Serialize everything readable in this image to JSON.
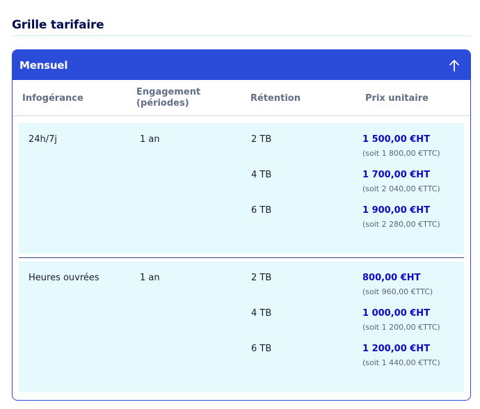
{
  "section": {
    "title": "Grille tarifaire"
  },
  "card": {
    "header_label": "Mensuel",
    "toggle_icon": "arrow-up-icon"
  },
  "table": {
    "headers": [
      "Infogérance",
      "Engagement (périodes)",
      "Rétention",
      "Prix unitaire"
    ],
    "groups": [
      {
        "infogerance": "24h/7j",
        "engagement": "1 an",
        "tiers": [
          {
            "retention": "2 TB",
            "price_ht": "1 500,00 €HT",
            "price_ttc": "(soit 1 800,00 €TTC)"
          },
          {
            "retention": "4 TB",
            "price_ht": "1 700,00 €HT",
            "price_ttc": "(soit 2 040,00 €TTC)"
          },
          {
            "retention": "6 TB",
            "price_ht": "1 900,00 €HT",
            "price_ttc": "(soit 2 280,00 €TTC)"
          }
        ]
      },
      {
        "infogerance": "Heures ouvrées",
        "engagement": "1 an",
        "tiers": [
          {
            "retention": "2 TB",
            "price_ht": "800,00 €HT",
            "price_ttc": "(soit 960,00 €TTC)"
          },
          {
            "retention": "4 TB",
            "price_ht": "1 000,00 €HT",
            "price_ttc": "(soit 1 200,00 €TTC)"
          },
          {
            "retention": "6 TB",
            "price_ht": "1 200,00 €HT",
            "price_ttc": "(soit 1 440,00 €TTC)"
          }
        ]
      }
    ]
  },
  "colors": {
    "accent": "#2b4bd9",
    "price": "#0a0ac2",
    "row_background": "#e6fafd",
    "title": "#000e4f"
  }
}
